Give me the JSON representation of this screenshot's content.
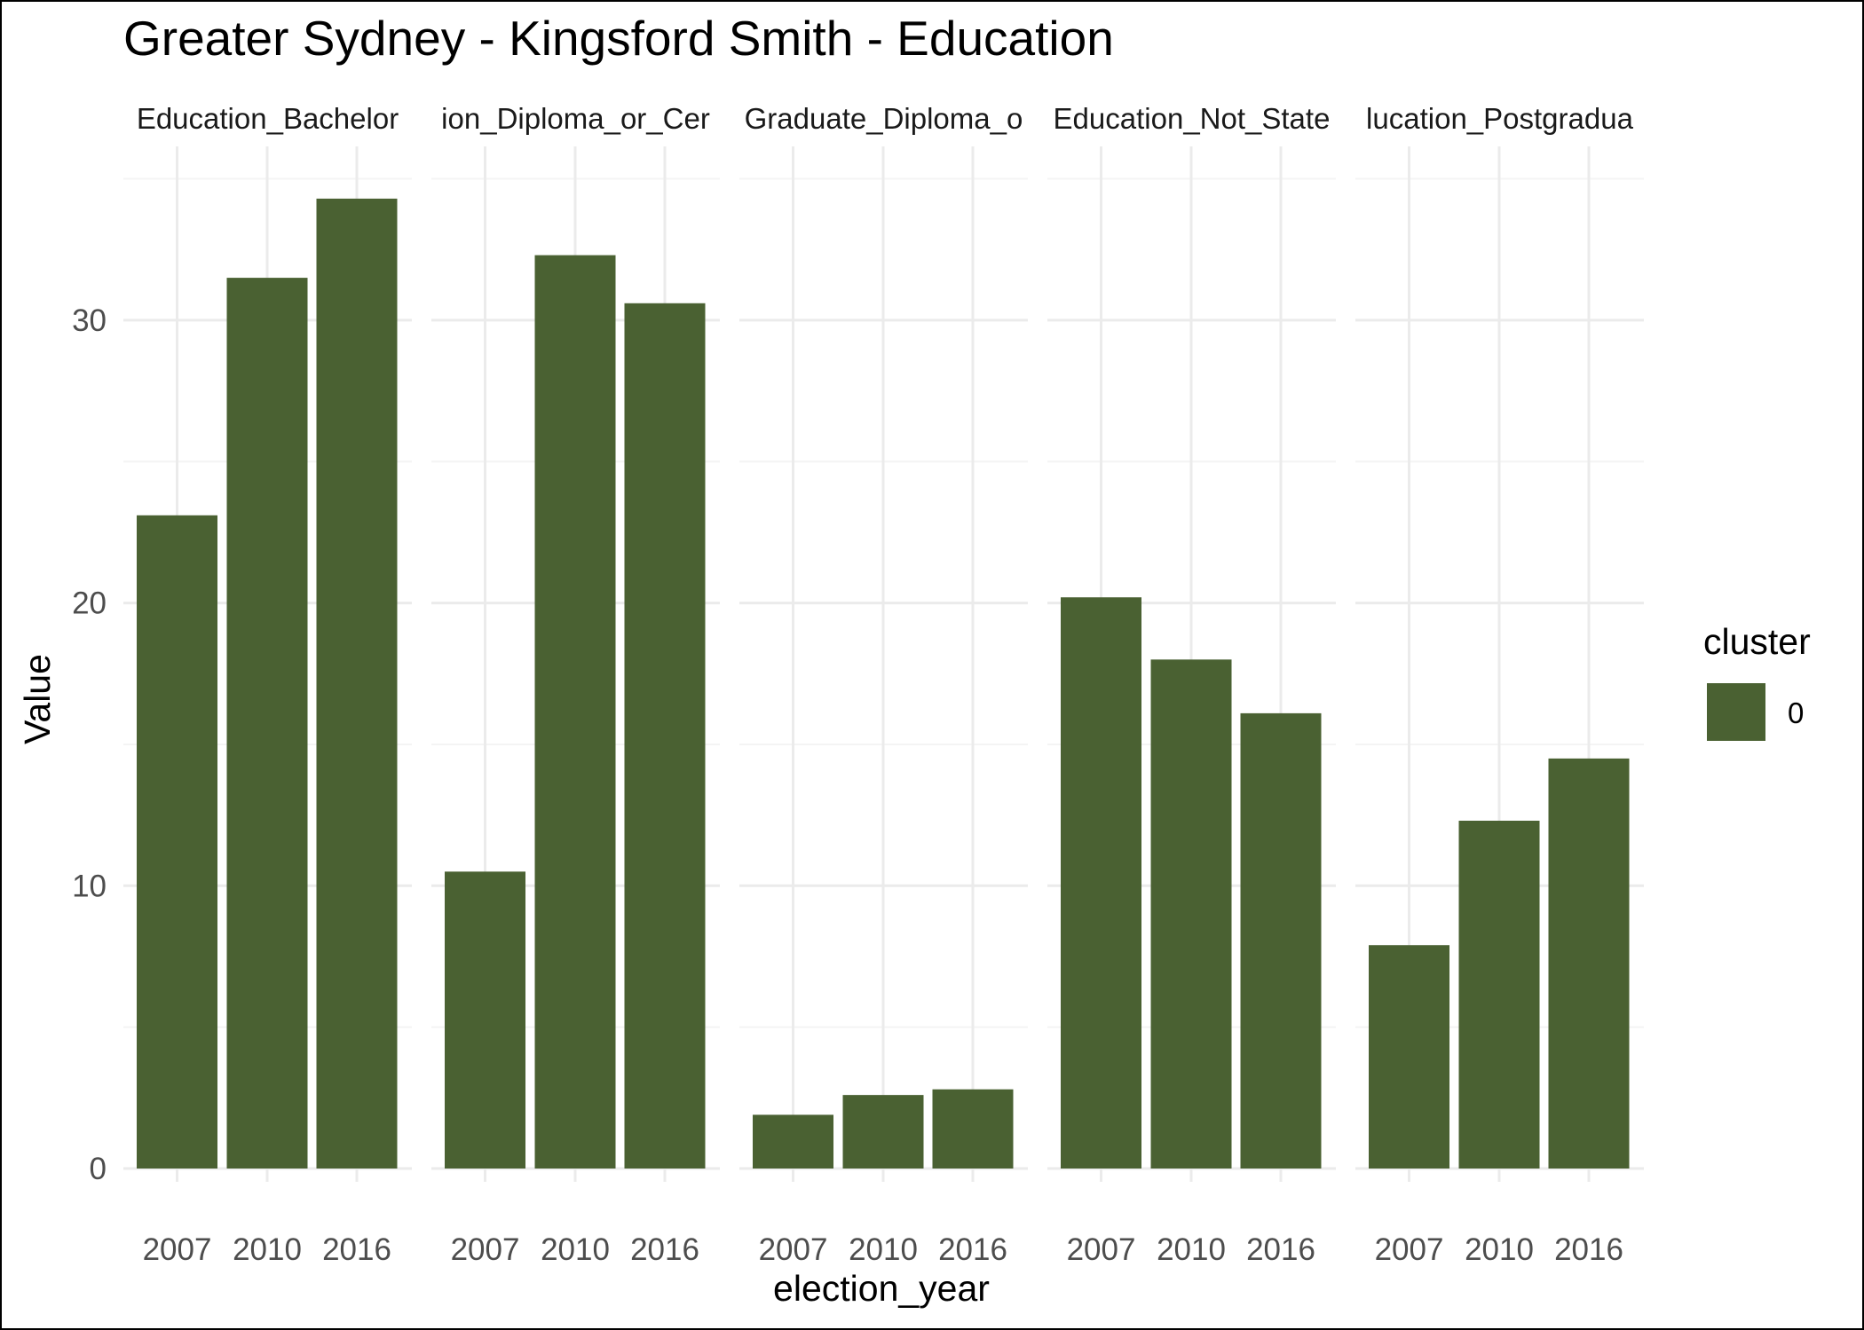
{
  "chart_data": {
    "type": "bar",
    "title": "Greater Sydney - Kingsford Smith - Education",
    "xlabel": "election_year",
    "ylabel": "Value",
    "ylim": [
      0,
      35
    ],
    "yticks": [
      0,
      10,
      20,
      30
    ],
    "grid": true,
    "categories": [
      "2007",
      "2010",
      "2016"
    ],
    "facets": [
      {
        "name": "Education_Bachelor",
        "strip_label": "Education_Bachelor",
        "values": [
          23.1,
          31.5,
          34.3
        ]
      },
      {
        "name": "Education_Diploma_or_Certificate",
        "strip_label": "ion_Diploma_or_Cer",
        "values": [
          10.5,
          32.3,
          30.6
        ]
      },
      {
        "name": "Education_Graduate_Diploma_or_Certificate",
        "strip_label": "Graduate_Diploma_o",
        "values": [
          1.9,
          2.6,
          2.8
        ]
      },
      {
        "name": "Education_Not_Stated",
        "strip_label": "Education_Not_State",
        "values": [
          20.2,
          18.0,
          16.1
        ]
      },
      {
        "name": "Education_Postgraduate",
        "strip_label": "lucation_Postgradua",
        "values": [
          7.9,
          12.3,
          14.5
        ]
      }
    ],
    "legend": {
      "title": "cluster",
      "items": [
        {
          "label": "0",
          "color": "#4a6132"
        }
      ],
      "position": "right"
    },
    "colors": {
      "bar": "#4a6132",
      "grid_major": "#ebebeb",
      "grid_minor": "#f4f4f4"
    }
  }
}
